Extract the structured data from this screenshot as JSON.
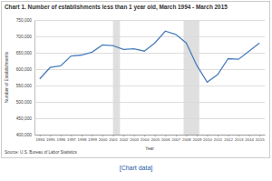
{
  "chart_data": {
    "type": "line",
    "title": "Chart 1. Number of establishments less than 1 year old, March 1994 - March 2015",
    "x_label": "Year",
    "y_label": "Number of Establishments",
    "source": "Source: U.S. Bureau of Labor Statistics",
    "link_text": "[Chart data]",
    "x": [
      1994,
      1995,
      1996,
      1997,
      1998,
      1999,
      2000,
      2001,
      2002,
      2003,
      2004,
      2005,
      2006,
      2007,
      2008,
      2009,
      2010,
      2011,
      2012,
      2013,
      2014,
      2015
    ],
    "values": [
      570000,
      605000,
      610000,
      640000,
      643000,
      652000,
      674000,
      672000,
      660000,
      662000,
      655000,
      680000,
      716000,
      706000,
      680000,
      612000,
      560000,
      583000,
      632000,
      630000,
      655000,
      680000
    ],
    "color": "#4a7ebb",
    "shaded_ranges": [
      [
        2001,
        2001.67
      ],
      [
        2007.75,
        2009.25
      ]
    ],
    "xlim": [
      1993.5,
      2015.5
    ],
    "xticks": [
      1994,
      1995,
      1996,
      1997,
      1998,
      1999,
      2000,
      2001,
      2002,
      2003,
      2004,
      2005,
      2006,
      2007,
      2008,
      2009,
      2010,
      2011,
      2012,
      2013,
      2014,
      2015
    ],
    "ylim": [
      400000,
      750000
    ],
    "yticks": [
      {
        "value": 400000,
        "label": "400,000"
      },
      {
        "value": 450000,
        "label": "450,000"
      },
      {
        "value": 500000,
        "label": "500,000"
      },
      {
        "value": 550000,
        "label": "550,000"
      },
      {
        "value": 600000,
        "label": "600,000"
      },
      {
        "value": 650000,
        "label": "650,000"
      },
      {
        "value": 700000,
        "label": "700,000"
      },
      {
        "value": 750000,
        "label": "750,000"
      }
    ],
    "grid": true
  }
}
